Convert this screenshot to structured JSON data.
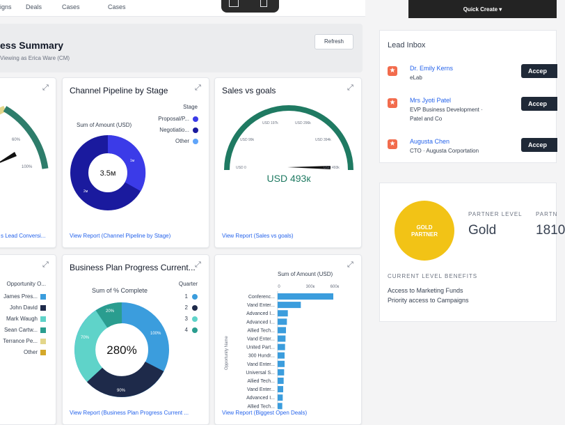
{
  "nav": {
    "tabs": [
      "igns",
      "Deals",
      "Cases",
      "Cases"
    ],
    "quick_create": "Quick Create ▾"
  },
  "header": {
    "title": "ess Summary",
    "subtitle": "Viewing as Erica Ware (CM)",
    "refresh": "Refresh"
  },
  "cards": {
    "lead_conv": {
      "labels": [
        "60%",
        "100%"
      ],
      "link": "s Lead Conversi..."
    },
    "pipeline": {
      "title": "Channel Pipeline by Stage",
      "chart_label": "Sum of Amount (USD)",
      "center": "3.5м",
      "slice_labels": [
        "1м",
        "2м"
      ],
      "legend_title": "Stage",
      "legend": [
        {
          "label": "Proposal/P...",
          "color": "#3b3be8"
        },
        {
          "label": "Negotiatio...",
          "color": "#1a1a9e"
        },
        {
          "label": "Other",
          "color": "#60a5fa"
        }
      ],
      "link": "View Report (Channel Pipeline by Stage)"
    },
    "sales_goals": {
      "title": "Sales vs goals",
      "ticks": [
        "USD 0",
        "USD 99k",
        "USD 197k",
        "USD 296k",
        "USD 394k",
        "USD 493k"
      ],
      "value": "USD 493к",
      "link": "View Report (Sales vs goals)"
    },
    "opp_owner": {
      "legend_title": "Opportunity O...",
      "legend": [
        {
          "label": "James Pres...",
          "color": "#3b9ddd"
        },
        {
          "label": "John David",
          "color": "#1e2a4a"
        },
        {
          "label": "Mark Waugh",
          "color": "#5fd3c9"
        },
        {
          "label": "Sean Cartw...",
          "color": "#2a9d8f"
        },
        {
          "label": "Terrance Pe...",
          "color": "#e3d68a"
        },
        {
          "label": "Other",
          "color": "#d4a82a"
        }
      ]
    },
    "bpp": {
      "title": "Business Plan Progress Current...",
      "chart_label": "Sum of % Complete",
      "center": "280%",
      "slice_labels": [
        "100%",
        "90%",
        "70%",
        "20%"
      ],
      "legend_title": "Quarter",
      "legend": [
        {
          "label": "1",
          "color": "#3b9ddd"
        },
        {
          "label": "2",
          "color": "#1e2a4a"
        },
        {
          "label": "3",
          "color": "#5fd3c9"
        },
        {
          "label": "4",
          "color": "#2a9d8f"
        }
      ],
      "link": "View Report (Business Plan Progress Current ..."
    },
    "open_deals": {
      "chart_label": "Sum of Amount (USD)",
      "axis_ticks": [
        "0",
        "300к",
        "600к"
      ],
      "y_axis": "Opportunity Name",
      "link": "View Report (Biggest Open Deals)"
    }
  },
  "lead_inbox": {
    "title": "Lead Inbox",
    "accept": "Accep",
    "leads": [
      {
        "name": "Dr. Emily Kerns",
        "company": "eLab"
      },
      {
        "name": "Mrs Jyoti Patel",
        "company": "EVP Business Development ·",
        "company2": "Patel and Co"
      },
      {
        "name": "Augusta Chen",
        "company": "CTO · Augusta Corportation"
      }
    ]
  },
  "partner": {
    "badge_line1": "GOLD",
    "badge_line2": "PARTNER",
    "level_label": "PARTNER LEVEL",
    "level_value": "Gold",
    "points_label": "PARTN",
    "points_value": "1810",
    "benefits_title": "CURRENT LEVEL BENEFITS",
    "benefits": [
      "Access to Marketing Funds",
      "Priority access to Campaigns"
    ]
  },
  "chart_data": [
    {
      "type": "pie",
      "title": "Channel Pipeline by Stage",
      "categories": [
        "Proposal/P...",
        "Negotiatio..."
      ],
      "values": [
        1,
        2
      ],
      "total_label": "3.5м"
    },
    {
      "type": "pie",
      "title": "Business Plan Progress Current...",
      "categories": [
        "1",
        "2",
        "3",
        "4"
      ],
      "values": [
        100,
        90,
        70,
        20
      ],
      "total_label": "280%"
    },
    {
      "type": "bar",
      "orientation": "horizontal",
      "xlabel": "Sum of Amount (USD)",
      "ylabel": "Opportunity Name",
      "xlim": [
        0,
        600000
      ],
      "categories": [
        "Conferenc...",
        "Vand Enter...",
        "Advanced I...",
        "Advanced I...",
        "Allied Tech...",
        "Vand Enter...",
        "United Part...",
        "300 Hundr...",
        "Vand Enter...",
        "Universal S...",
        "Allied Tech...",
        "Vand Enter...",
        "Advanced I...",
        "Allied Tech..."
      ],
      "values": [
        600000,
        250000,
        110000,
        100000,
        90000,
        85000,
        80000,
        75000,
        75000,
        70000,
        65000,
        60000,
        55000,
        50000
      ]
    }
  ]
}
